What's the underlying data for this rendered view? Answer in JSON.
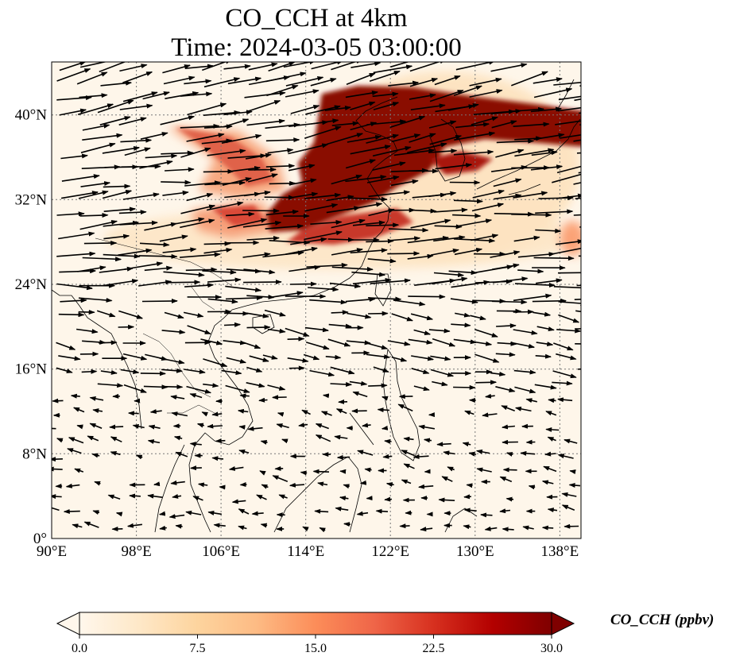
{
  "title": {
    "line1": "CO_CCH at 4km",
    "line2": "Time: 2024-03-05 03:00:00"
  },
  "map": {
    "lon_range": [
      90,
      140
    ],
    "lat_range": [
      0,
      45
    ],
    "x_ticks": [
      "90°E",
      "98°E",
      "106°E",
      "114°E",
      "122°E",
      "130°E",
      "138°E"
    ],
    "y_ticks": [
      "0°",
      "8°N",
      "16°N",
      "24°N",
      "32°N",
      "40°N"
    ],
    "gridlines": "dotted",
    "variable_units": "ppbv"
  },
  "colorbar": {
    "label": "CO_CCH (ppbv)",
    "ticks": [
      "0.0",
      "7.5",
      "15.0",
      "22.5",
      "30.0"
    ],
    "range": [
      0,
      30
    ],
    "colormap": "OrRd",
    "colors": [
      "#fff7ec",
      "#fee8c8",
      "#fdd49e",
      "#fdbb84",
      "#fc8d59",
      "#ef6548",
      "#d7301f",
      "#b30000",
      "#7f0000"
    ],
    "extend": "both"
  }
}
